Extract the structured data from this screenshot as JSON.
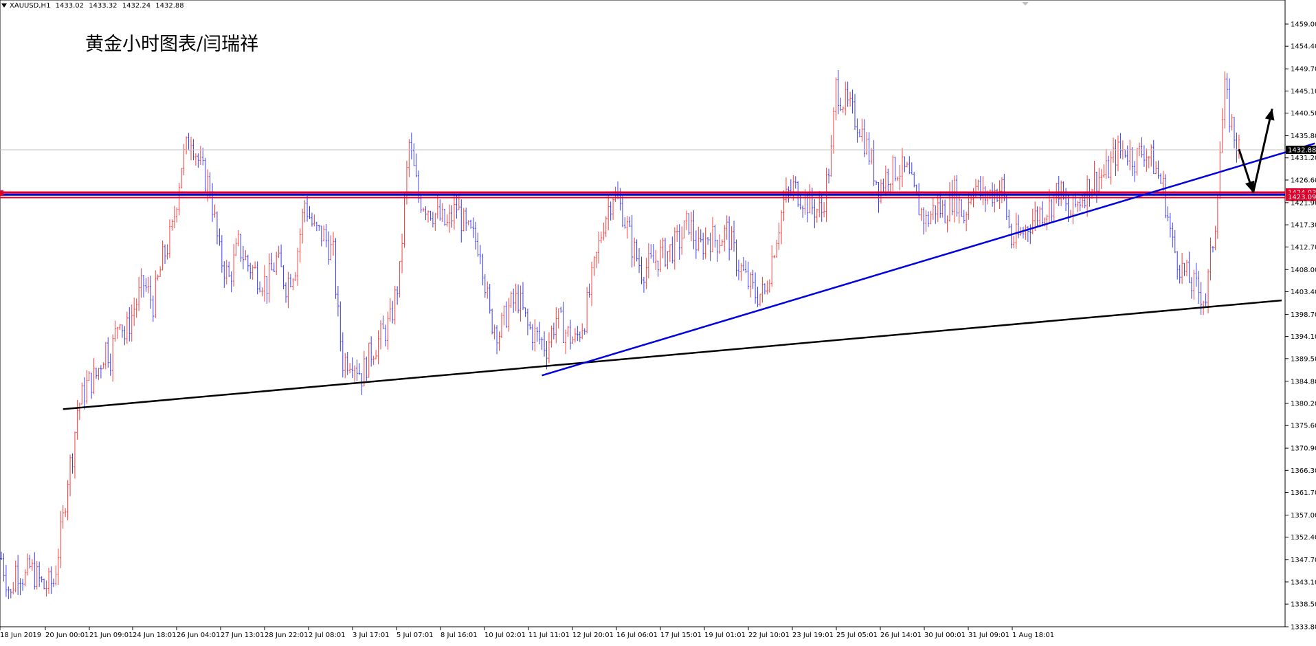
{
  "header": {
    "symbol": "XAUUSD,H1",
    "open": "1433.02",
    "high": "1433.32",
    "low": "1432.24",
    "close": "1432.88"
  },
  "chart_title": "黄金小时图表/闫瑞祥",
  "chart_data": {
    "type": "candlestick",
    "ylim": [
      1333.8,
      1461.0
    ],
    "y_ticks": [
      "1459.00",
      "1454.40",
      "1449.70",
      "1445.10",
      "1440.50",
      "1435.80",
      "1431.20",
      "1426.60",
      "1421.90",
      "1417.30",
      "1412.70",
      "1408.00",
      "1403.40",
      "1398.70",
      "1394.10",
      "1389.50",
      "1384.80",
      "1380.20",
      "1375.60",
      "1370.90",
      "1366.30",
      "1361.70",
      "1357.00",
      "1352.40",
      "1347.70",
      "1343.10",
      "1338.50",
      "1333.80"
    ],
    "x_ticks": [
      "18 Jun 2019",
      "20 Jun 00:01",
      "21 Jun 09:01",
      "24 Jun 18:01",
      "26 Jun 04:01",
      "27 Jun 13:01",
      "28 Jun 22:01",
      "2 Jul 08:01",
      "3 Jul 17:01",
      "5 Jul 07:01",
      "8 Jul 16:01",
      "10 Jul 02:01",
      "11 Jul 11:01",
      "12 Jul 20:01",
      "16 Jul 06:01",
      "17 Jul 15:01",
      "19 Jul 01:01",
      "22 Jul 10:01",
      "23 Jul 19:01",
      "25 Jul 05:01",
      "26 Jul 14:01",
      "30 Jul 00:01",
      "31 Jul 09:01",
      "1 Aug 18:01"
    ],
    "current_price": "1432.88",
    "level_labels": [
      "1424.03",
      "1423.09"
    ],
    "horizontal_levels": [
      1424.03,
      1423.09
    ],
    "price_path": [
      [
        0,
        1348
      ],
      [
        2,
        1340
      ],
      [
        3,
        1346
      ],
      [
        5,
        1344
      ],
      [
        6,
        1346
      ],
      [
        9,
        1342
      ],
      [
        11,
        1343
      ],
      [
        13,
        1356
      ],
      [
        14,
        1365
      ],
      [
        15,
        1370
      ],
      [
        16,
        1379
      ],
      [
        18,
        1384
      ],
      [
        20,
        1386
      ],
      [
        22,
        1392
      ],
      [
        23,
        1390
      ],
      [
        25,
        1399
      ],
      [
        26,
        1394
      ],
      [
        28,
        1400
      ],
      [
        30,
        1405
      ],
      [
        32,
        1401
      ],
      [
        34,
        1410
      ],
      [
        36,
        1416
      ],
      [
        38,
        1430
      ],
      [
        40,
        1436
      ],
      [
        42,
        1429
      ],
      [
        44,
        1425
      ],
      [
        46,
        1411
      ],
      [
        48,
        1406
      ],
      [
        50,
        1413
      ],
      [
        52,
        1409
      ],
      [
        54,
        1407
      ],
      [
        56,
        1405
      ],
      [
        58,
        1410
      ],
      [
        60,
        1405
      ],
      [
        62,
        1409
      ],
      [
        64,
        1422
      ],
      [
        66,
        1416
      ],
      [
        68,
        1415
      ],
      [
        70,
        1411
      ],
      [
        71,
        1398
      ],
      [
        72,
        1389
      ],
      [
        74,
        1390
      ],
      [
        76,
        1386
      ],
      [
        78,
        1391
      ],
      [
        80,
        1394
      ],
      [
        82,
        1397
      ],
      [
        84,
        1407
      ],
      [
        85,
        1422
      ],
      [
        86,
        1434
      ],
      [
        88,
        1423
      ],
      [
        90,
        1421
      ],
      [
        92,
        1419
      ],
      [
        94,
        1417
      ],
      [
        96,
        1421
      ],
      [
        98,
        1416
      ],
      [
        100,
        1414
      ],
      [
        101,
        1413
      ],
      [
        103,
        1398
      ],
      [
        105,
        1395
      ],
      [
        107,
        1400
      ],
      [
        109,
        1402
      ],
      [
        111,
        1396
      ],
      [
        113,
        1394
      ],
      [
        115,
        1392
      ],
      [
        117,
        1398
      ],
      [
        119,
        1395
      ],
      [
        121,
        1393
      ],
      [
        123,
        1398
      ],
      [
        125,
        1408
      ],
      [
        127,
        1418
      ],
      [
        129,
        1424
      ],
      [
        131,
        1420
      ],
      [
        133,
        1413
      ],
      [
        135,
        1408
      ],
      [
        137,
        1409
      ],
      [
        139,
        1411
      ],
      [
        141,
        1412
      ],
      [
        143,
        1414
      ],
      [
        145,
        1418
      ],
      [
        147,
        1412
      ],
      [
        149,
        1415
      ],
      [
        151,
        1414
      ],
      [
        153,
        1416
      ],
      [
        155,
        1410
      ],
      [
        157,
        1406
      ],
      [
        159,
        1403
      ],
      [
        161,
        1403
      ],
      [
        163,
        1413
      ],
      [
        165,
        1422
      ],
      [
        167,
        1425
      ],
      [
        169,
        1423
      ],
      [
        171,
        1421
      ],
      [
        173,
        1420
      ],
      [
        175,
        1432
      ],
      [
        176,
        1446
      ],
      [
        177,
        1444
      ],
      [
        179,
        1441
      ],
      [
        181,
        1438
      ],
      [
        183,
        1432
      ],
      [
        185,
        1425
      ],
      [
        187,
        1428
      ],
      [
        189,
        1429
      ],
      [
        191,
        1428
      ],
      [
        193,
        1422
      ],
      [
        195,
        1418
      ],
      [
        197,
        1421
      ],
      [
        199,
        1420
      ],
      [
        201,
        1424
      ],
      [
        203,
        1419
      ],
      [
        205,
        1426
      ],
      [
        207,
        1423
      ],
      [
        209,
        1424
      ],
      [
        211,
        1425
      ],
      [
        213,
        1414
      ],
      [
        215,
        1415
      ],
      [
        217,
        1418
      ],
      [
        219,
        1420
      ],
      [
        221,
        1421
      ],
      [
        223,
        1425
      ],
      [
        225,
        1419
      ],
      [
        227,
        1422
      ],
      [
        229,
        1425
      ],
      [
        231,
        1427
      ],
      [
        233,
        1428
      ],
      [
        235,
        1432
      ],
      [
        237,
        1433
      ],
      [
        239,
        1431
      ],
      [
        241,
        1433
      ],
      [
        243,
        1430
      ],
      [
        245,
        1425
      ],
      [
        247,
        1413
      ],
      [
        249,
        1408
      ],
      [
        251,
        1405
      ],
      [
        253,
        1403
      ],
      [
        254,
        1402
      ],
      [
        256,
        1418
      ],
      [
        257,
        1433
      ],
      [
        258,
        1445
      ],
      [
        259,
        1440
      ],
      [
        260,
        1436
      ],
      [
        261,
        1433
      ]
    ],
    "trendlines": [
      {
        "color": "#000000",
        "points": [
          [
            13,
            1379
          ],
          [
            270,
            1401.6
          ]
        ]
      },
      {
        "color": "#0000dd",
        "points": [
          [
            114,
            1386
          ],
          [
            277,
            1434.2
          ]
        ]
      }
    ],
    "arrows": [
      {
        "color": "#000000",
        "points": [
          [
            261,
            1433
          ],
          [
            264,
            1424
          ]
        ]
      },
      {
        "color": "#000000",
        "points": [
          [
            264,
            1424
          ],
          [
            268,
            1441.4
          ]
        ]
      }
    ]
  }
}
